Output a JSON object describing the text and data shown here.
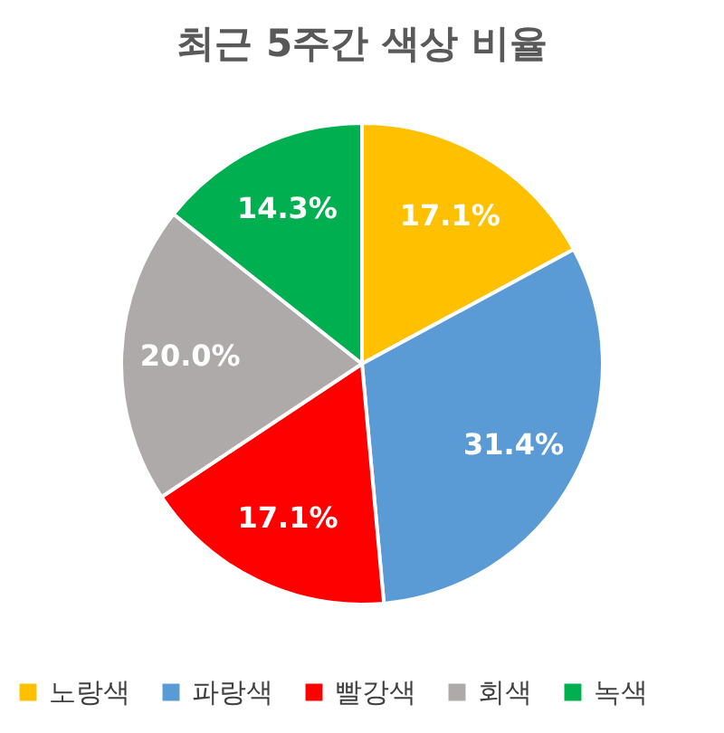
{
  "chart_data": {
    "type": "pie",
    "title": "최근 5주간 색상 비율",
    "categories": [
      "노랑색",
      "파랑색",
      "빨강색",
      "회색",
      "녹색"
    ],
    "values": [
      17.1,
      31.4,
      17.1,
      20.0,
      14.3
    ],
    "colors": [
      "#ffc000",
      "#5b9bd5",
      "#ff0000",
      "#aeaaaa",
      "#00b050"
    ],
    "value_labels": [
      "17.1%",
      "31.4%",
      "17.1%",
      "20.0%",
      "14.3%"
    ],
    "legend": "bottom"
  }
}
